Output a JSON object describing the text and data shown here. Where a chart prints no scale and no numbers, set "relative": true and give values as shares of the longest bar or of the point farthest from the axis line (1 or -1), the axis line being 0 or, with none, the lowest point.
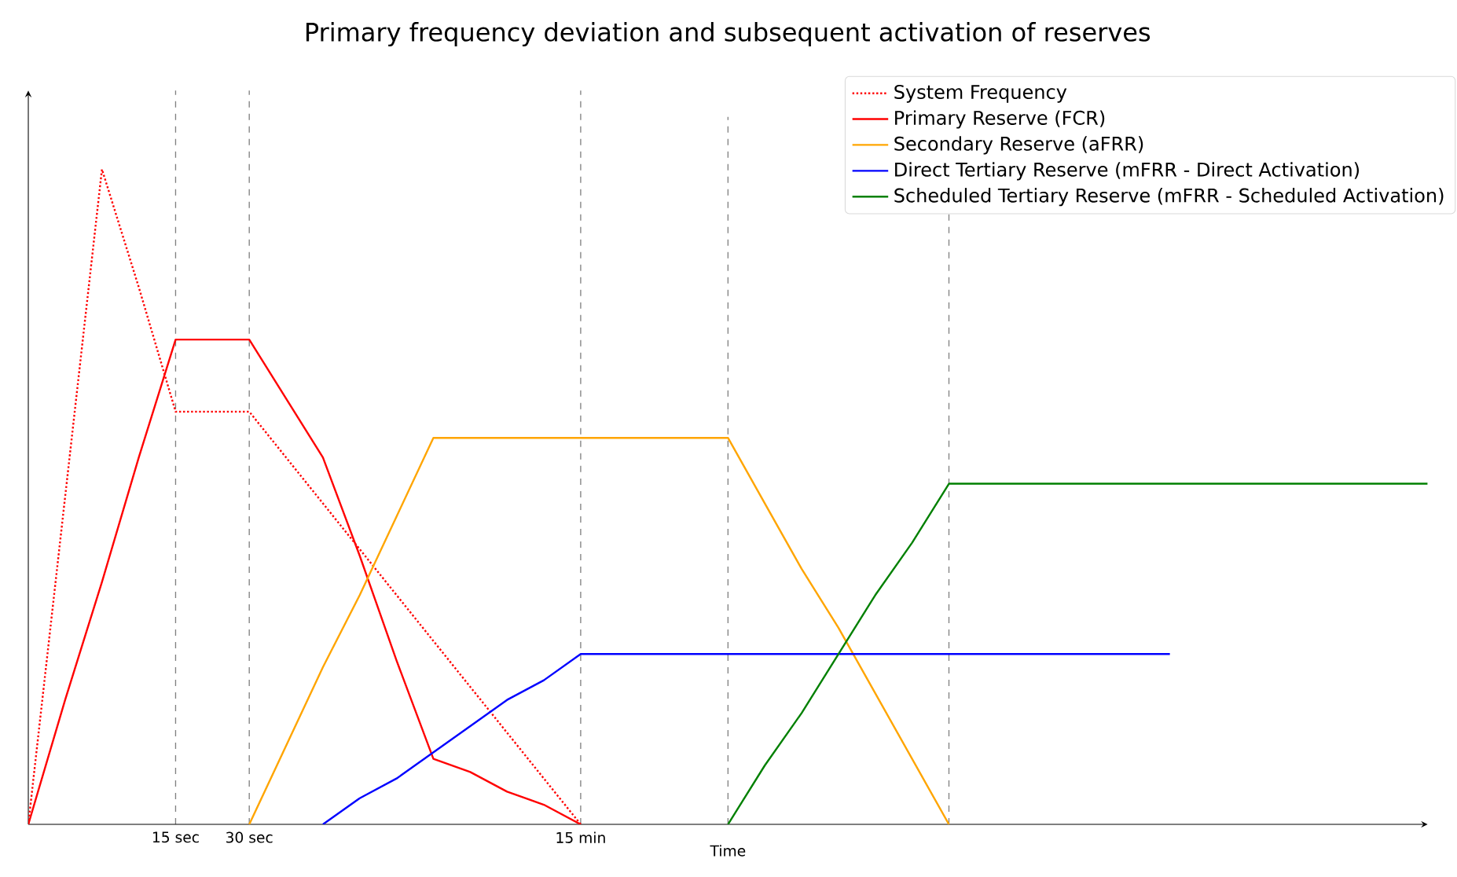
{
  "chart_data": {
    "type": "line",
    "title": "Primary frequency deviation and subsequent activation of reserves",
    "xlabel": "Time",
    "relative": true,
    "categories": [
      null,
      null,
      null,
      null,
      "15 sec",
      null,
      "30 sec",
      null,
      null,
      null,
      null,
      null,
      null,
      null,
      null,
      "15 min",
      null,
      null,
      null,
      null,
      null,
      null,
      null,
      null,
      null,
      null,
      null,
      null,
      null,
      null,
      null,
      null,
      null,
      null,
      null,
      null,
      null,
      null,
      null
    ],
    "series": [
      {
        "name": "System Frequency",
        "color": "#ff0000",
        "line_style": "dotted",
        "values": [
          0,
          0.5,
          1,
          0.82,
          0.63,
          0.63,
          0.63,
          0.56,
          0.49,
          0.42,
          0.35,
          0.28,
          0.21,
          0.14,
          0.07,
          0,
          null,
          null,
          null,
          null,
          null,
          null,
          null,
          null,
          null,
          null,
          null,
          null,
          null,
          null,
          null,
          null,
          null,
          null,
          null,
          null,
          null,
          null,
          null
        ]
      },
      {
        "name": "Primary Reserve (FCR)",
        "color": "#ff0000",
        "values": [
          0,
          0.19,
          0.37,
          0.56,
          0.74,
          0.74,
          0.74,
          0.65,
          0.56,
          0.41,
          0.25,
          0.1,
          0.08,
          0.05,
          0.03,
          0,
          null,
          null,
          null,
          null,
          null,
          null,
          null,
          null,
          null,
          null,
          null,
          null,
          null,
          null,
          null,
          null,
          null,
          null,
          null,
          null,
          null,
          null,
          null
        ]
      },
      {
        "name": "Secondary Reserve (aFRR)",
        "color": "#ffa500",
        "values": [
          null,
          null,
          null,
          null,
          null,
          null,
          0,
          0.12,
          0.24,
          0.35,
          0.47,
          0.59,
          0.59,
          0.59,
          0.59,
          0.59,
          0.59,
          0.59,
          0.59,
          0.59,
          0.49,
          0.39,
          0.3,
          0.2,
          0.1,
          0,
          null,
          null,
          null,
          null,
          null,
          null,
          null,
          null,
          null,
          null,
          null,
          null,
          null
        ]
      },
      {
        "name": "Direct Tertiary Reserve (mFRR - Direct Activation)",
        "color": "#0000ff",
        "values": [
          null,
          null,
          null,
          null,
          null,
          null,
          null,
          null,
          0,
          0.04,
          0.07,
          0.11,
          0.15,
          0.19,
          0.22,
          0.26,
          0.26,
          0.26,
          0.26,
          0.26,
          0.26,
          0.26,
          0.26,
          0.26,
          0.26,
          0.26,
          0.26,
          0.26,
          0.26,
          0.26,
          0.26,
          0.26,
          null,
          null,
          null,
          null,
          null,
          null,
          null
        ]
      },
      {
        "name": "Scheduled Tertiary Reserve (mFRR - Scheduled Activation)",
        "color": "#008000",
        "values": [
          null,
          null,
          null,
          null,
          null,
          null,
          null,
          null,
          null,
          null,
          null,
          null,
          null,
          null,
          null,
          null,
          null,
          null,
          null,
          0,
          0.09,
          0.17,
          0.26,
          0.35,
          0.43,
          0.52,
          0.52,
          0.52,
          0.52,
          0.52,
          0.52,
          0.52,
          0.52,
          0.52,
          0.52,
          0.52,
          0.52,
          0.52,
          0.52
        ]
      }
    ],
    "legend": "top right",
    "marker": "none",
    "line_style": "solid",
    "grid": "x"
  }
}
